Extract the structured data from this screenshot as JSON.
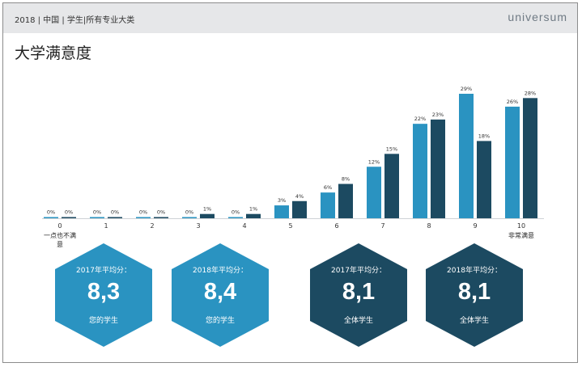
{
  "header": {
    "breadcrumb": "2018 | 中国 | 学生|所有专业大类",
    "brand": "universum"
  },
  "page_title": "大学满意度",
  "chart_data": {
    "type": "bar",
    "title": "",
    "categories": [
      "0",
      "1",
      "2",
      "3",
      "4",
      "5",
      "6",
      "7",
      "8",
      "9",
      "10"
    ],
    "series": [
      {
        "values": [
          0,
          0,
          0,
          0,
          0,
          3,
          6,
          12,
          22,
          29,
          26
        ],
        "color": "#2a93c1"
      },
      {
        "values": [
          0,
          0,
          0,
          1,
          1,
          4,
          8,
          15,
          23,
          18,
          28
        ],
        "color": "#1c4a61"
      }
    ],
    "ylim": [
      0,
      29
    ],
    "value_suffix": "%",
    "min_label": "一点也不满意",
    "max_label": "非常满意"
  },
  "hexagons": [
    {
      "label": "2017年平均分：",
      "value": "8,3",
      "sub": "您的学生",
      "color": "#2a93c1"
    },
    {
      "label": "2018年平均分：",
      "value": "8,4",
      "sub": "您的学生",
      "color": "#2a93c1"
    },
    {
      "label": "2017年平均分：",
      "value": "8,1",
      "sub": "全体学生",
      "color": "#1c4a61"
    },
    {
      "label": "2018年平均分：",
      "value": "8,1",
      "sub": "全体学生",
      "color": "#1c4a61"
    }
  ]
}
